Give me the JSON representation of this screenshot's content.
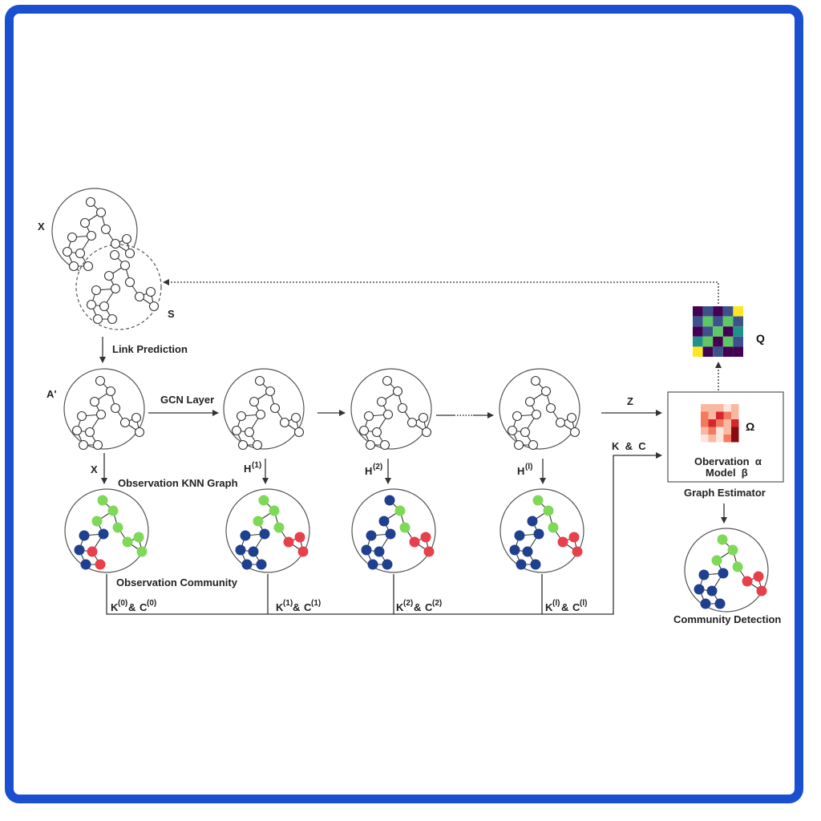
{
  "input": {
    "x_label": "X",
    "s_label": "S"
  },
  "link_prediction": "Link Prediction",
  "gcn": {
    "a_prime": "A'",
    "layer_label": "GCN Layer",
    "z_label": "Z"
  },
  "knn": {
    "x_label": "X",
    "title": "Observation KNN Graph",
    "h": [
      {
        "base": "H",
        "sup": "(1)"
      },
      {
        "base": "H",
        "sup": "(2)"
      },
      {
        "base": "H",
        "sup": "(l)"
      }
    ]
  },
  "community": {
    "title": "Observation Community",
    "kc": [
      {
        "k": "K",
        "ks": "(0)",
        "amp": "&",
        "c": "C",
        "cs": "(0)"
      },
      {
        "k": "K",
        "ks": "(1)",
        "amp": "&",
        "c": "C",
        "cs": "(1)"
      },
      {
        "k": "K",
        "ks": "(2)",
        "amp": "&",
        "c": "C",
        "cs": "(2)"
      },
      {
        "k": "K",
        "ks": "(l)",
        "amp": "&",
        "c": "C",
        "cs": "(l)"
      }
    ],
    "kc_total": "K  &  C"
  },
  "estimator": {
    "omega": "Ω",
    "line1": "Obervation  α",
    "line2": "Model  β",
    "title": "Graph Estimator"
  },
  "q_label": "Q",
  "detection_title": "Community Detection",
  "colors": {
    "frame": "#1a4fd0",
    "green": "#7ed957",
    "blue": "#1f3f8f",
    "red": "#e8404a",
    "q_palette": [
      "#440154",
      "#3b528b",
      "#21918c",
      "#5ec962",
      "#fde725"
    ],
    "omega_palette": [
      "#fde4dc",
      "#f8b9a3",
      "#f17a5f",
      "#d7262b",
      "#8b0a12"
    ]
  }
}
